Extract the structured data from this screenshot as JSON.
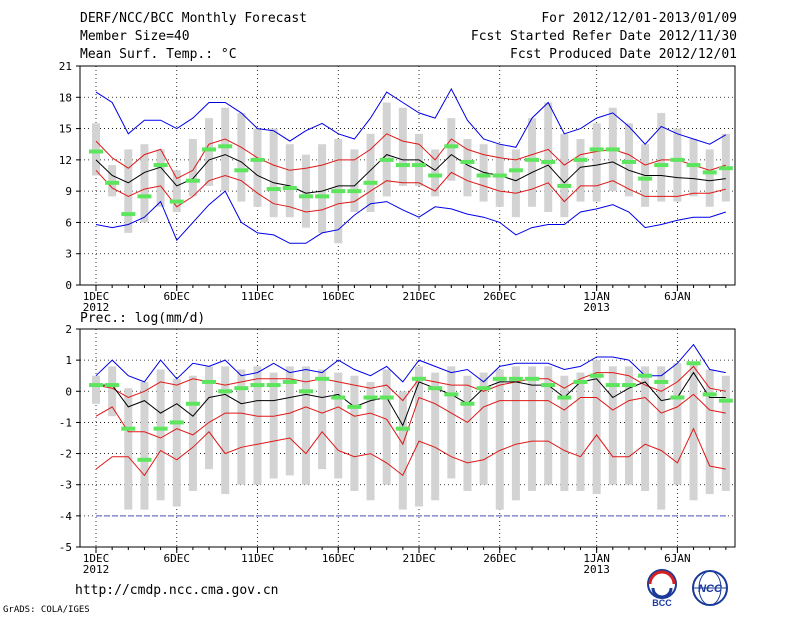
{
  "header": {
    "left": [
      "DERF/NCC/BCC Monthly Forecast",
      "Member Size=40",
      "Mean Surf. Temp.: °C"
    ],
    "right": [
      "For 2012/12/01-2013/01/09",
      "Fcst Started Refer Date 2012/11/30",
      "Fcst Produced Date 2012/12/01"
    ]
  },
  "footer": {
    "url": "http://cmdp.ncc.cma.gov.cn",
    "credit": "GrADS: COLA/IGES",
    "logo_bcc": "BCC",
    "logo_ncc": "NCC"
  },
  "colors": {
    "box": "#d3d3d3",
    "mean": "#000000",
    "spread": "#e01818",
    "extreme": "#0000e8",
    "observed": "#5ee55e",
    "floor": "#5050c8",
    "grid": "#000000"
  },
  "chart_data": [
    {
      "type": "line",
      "title": "Mean Surf. Temp.: °C",
      "ylabel": "",
      "ylim": [
        0,
        21
      ],
      "yticks": [
        0,
        3,
        6,
        9,
        12,
        15,
        18,
        21
      ],
      "categories": [
        "1DEC",
        "6DEC",
        "11DEC",
        "16DEC",
        "21DEC",
        "26DEC",
        "1JAN",
        "6JAN"
      ],
      "xtick_days": [
        1,
        6,
        11,
        16,
        21,
        26,
        32,
        37
      ],
      "xtick_years": {
        "1": "2012",
        "32": "2013"
      },
      "x": [
        1,
        2,
        3,
        4,
        5,
        6,
        7,
        8,
        9,
        10,
        11,
        12,
        13,
        14,
        15,
        16,
        17,
        18,
        19,
        20,
        21,
        22,
        23,
        24,
        25,
        26,
        27,
        28,
        29,
        30,
        31,
        32,
        33,
        34,
        35,
        36,
        37,
        38,
        39,
        40
      ],
      "box_low": [
        10.5,
        8.5,
        5.0,
        6.0,
        7.5,
        7.0,
        8.5,
        9.5,
        9.0,
        8.0,
        7.5,
        6.5,
        6.5,
        5.5,
        5.0,
        4.0,
        7.0,
        7.0,
        8.5,
        9.5,
        9.5,
        8.5,
        10.0,
        8.5,
        8.0,
        7.5,
        6.5,
        7.5,
        7.0,
        6.5,
        8.0,
        8.0,
        9.0,
        8.5,
        7.5,
        8.0,
        8.0,
        8.5,
        7.5,
        8.0
      ],
      "box_high": [
        15.5,
        11.5,
        13.0,
        13.5,
        13.0,
        11.0,
        14.0,
        16.0,
        17.0,
        16.5,
        15.0,
        15.0,
        13.5,
        12.5,
        13.5,
        14.0,
        13.0,
        14.5,
        17.5,
        17.0,
        14.5,
        13.0,
        16.0,
        14.0,
        13.5,
        13.5,
        13.0,
        16.0,
        17.5,
        14.5,
        14.0,
        15.5,
        17.0,
        15.5,
        13.5,
        16.5,
        15.0,
        14.0,
        13.0,
        14.5
      ],
      "series": [
        {
          "name": "max",
          "color_key": "extreme",
          "values": [
            18.5,
            17.5,
            14.5,
            15.8,
            15.8,
            15.0,
            16.0,
            17.5,
            17.5,
            16.5,
            15.0,
            14.8,
            13.8,
            14.8,
            15.5,
            14.5,
            14.0,
            16.0,
            18.5,
            17.5,
            16.5,
            16.0,
            18.8,
            15.8,
            14.0,
            13.5,
            13.2,
            16.0,
            17.5,
            14.5,
            15.0,
            16.0,
            16.5,
            15.2,
            13.5,
            15.2,
            14.5,
            14.0,
            13.5,
            14.4
          ]
        },
        {
          "name": "upper",
          "color_key": "spread",
          "values": [
            13.8,
            12.2,
            11.2,
            12.5,
            13.0,
            10.2,
            11.0,
            13.5,
            14.0,
            13.2,
            12.2,
            11.5,
            11.0,
            11.2,
            11.5,
            12.0,
            12.0,
            13.0,
            14.5,
            13.8,
            13.5,
            12.0,
            14.0,
            13.0,
            12.5,
            12.2,
            12.0,
            12.5,
            13.0,
            11.5,
            12.5,
            12.8,
            13.0,
            12.5,
            11.5,
            12.0,
            12.0,
            11.5,
            11.0,
            11.5
          ]
        },
        {
          "name": "mean",
          "color_key": "mean",
          "values": [
            12.0,
            10.5,
            9.8,
            10.8,
            11.3,
            9.5,
            10.2,
            12.0,
            12.5,
            11.8,
            10.5,
            9.8,
            9.5,
            8.8,
            9.0,
            9.5,
            9.5,
            11.0,
            12.5,
            12.0,
            12.0,
            11.0,
            12.5,
            11.5,
            10.8,
            10.5,
            10.0,
            10.8,
            11.5,
            9.8,
            11.3,
            11.5,
            11.8,
            11.0,
            10.5,
            10.5,
            10.3,
            10.2,
            10.0,
            10.2
          ]
        },
        {
          "name": "lower",
          "color_key": "spread",
          "values": [
            11.0,
            9.3,
            8.5,
            9.2,
            9.5,
            7.5,
            8.5,
            10.0,
            10.5,
            10.0,
            8.8,
            7.8,
            7.5,
            7.0,
            7.2,
            7.8,
            8.0,
            9.0,
            10.0,
            9.8,
            9.8,
            9.0,
            10.8,
            10.0,
            9.5,
            9.0,
            8.8,
            9.2,
            9.8,
            8.0,
            9.5,
            9.5,
            10.0,
            9.2,
            8.5,
            8.5,
            8.5,
            8.8,
            8.8,
            9.2
          ]
        },
        {
          "name": "min",
          "color_key": "extreme",
          "values": [
            5.8,
            5.5,
            5.8,
            6.5,
            8.0,
            4.3,
            6.0,
            7.7,
            9.0,
            6.0,
            5.0,
            4.8,
            4.0,
            4.0,
            5.0,
            5.3,
            6.7,
            7.8,
            8.0,
            7.2,
            6.5,
            7.5,
            7.3,
            6.8,
            6.5,
            6.0,
            4.8,
            5.5,
            5.8,
            5.8,
            7.0,
            7.3,
            7.7,
            7.0,
            5.5,
            5.8,
            6.2,
            6.5,
            6.5,
            7.0
          ]
        }
      ],
      "observed": [
        12.8,
        9.8,
        6.8,
        8.5,
        11.5,
        8.0,
        10.0,
        13.0,
        13.3,
        11.0,
        12.0,
        9.2,
        9.3,
        8.5,
        8.5,
        9.0,
        9.0,
        9.8,
        12.0,
        11.5,
        11.5,
        10.5,
        13.3,
        11.8,
        10.5,
        10.5,
        11.0,
        12.0,
        11.8,
        9.5,
        12.0,
        13.0,
        13.0,
        11.8,
        10.2,
        11.5,
        12.0,
        11.5,
        10.8,
        11.2
      ],
      "floor": null
    },
    {
      "type": "line",
      "title": "Prec.: log(mm/d)",
      "ylabel": "",
      "ylim": [
        -5,
        2
      ],
      "yticks": [
        -5,
        -4,
        -3,
        -2,
        -1,
        0,
        1,
        2
      ],
      "categories": [
        "1DEC",
        "6DEC",
        "11DEC",
        "16DEC",
        "21DEC",
        "26DEC",
        "1JAN",
        "6JAN"
      ],
      "xtick_days": [
        1,
        6,
        11,
        16,
        21,
        26,
        32,
        37
      ],
      "xtick_years": {
        "1": "2012",
        "32": "2013"
      },
      "x": [
        1,
        2,
        3,
        4,
        5,
        6,
        7,
        8,
        9,
        10,
        11,
        12,
        13,
        14,
        15,
        16,
        17,
        18,
        19,
        20,
        21,
        22,
        23,
        24,
        25,
        26,
        27,
        28,
        29,
        30,
        31,
        32,
        33,
        34,
        35,
        36,
        37,
        38,
        39,
        40
      ],
      "box_low": [
        -0.4,
        -0.8,
        -3.8,
        -3.8,
        -3.5,
        -3.7,
        -3.2,
        -2.5,
        -3.3,
        -3.0,
        -3.0,
        -2.8,
        -2.7,
        -3.0,
        -2.5,
        -2.8,
        -3.2,
        -3.5,
        -3.0,
        -3.8,
        -3.7,
        -3.5,
        -2.8,
        -3.2,
        -3.0,
        -3.8,
        -3.5,
        -3.2,
        -3.0,
        -3.2,
        -3.2,
        -3.3,
        -3.0,
        -3.0,
        -3.2,
        -3.8,
        -3.0,
        -3.5,
        -3.3,
        -3.2
      ],
      "box_high": [
        0.5,
        0.8,
        0.1,
        0.3,
        0.7,
        0.4,
        0.5,
        0.8,
        0.8,
        0.7,
        0.8,
        0.6,
        0.8,
        0.8,
        0.7,
        0.6,
        0.5,
        0.3,
        0.7,
        0.0,
        0.8,
        0.6,
        0.8,
        0.5,
        0.6,
        0.7,
        0.8,
        0.8,
        0.8,
        0.5,
        0.6,
        1.0,
        0.8,
        0.8,
        0.8,
        0.8,
        0.9,
        0.9,
        0.7,
        0.5
      ],
      "series": [
        {
          "name": "max",
          "color_key": "extreme",
          "values": [
            0.5,
            1.0,
            0.5,
            0.3,
            1.0,
            0.4,
            0.9,
            0.8,
            1.0,
            0.5,
            0.6,
            0.9,
            0.6,
            0.7,
            0.6,
            1.0,
            0.7,
            0.5,
            0.8,
            0.3,
            1.0,
            0.8,
            0.6,
            0.7,
            0.3,
            0.8,
            0.9,
            0.9,
            0.9,
            0.7,
            0.8,
            1.1,
            1.1,
            1.0,
            0.5,
            0.5,
            0.9,
            1.5,
            0.7,
            0.6
          ]
        },
        {
          "name": "upper",
          "color_key": "spread",
          "values": [
            0.2,
            0.1,
            -0.2,
            0.0,
            0.3,
            0.2,
            0.4,
            0.3,
            0.2,
            0.3,
            0.4,
            0.4,
            0.4,
            0.3,
            0.4,
            0.3,
            0.2,
            0.1,
            0.2,
            -0.3,
            0.4,
            0.3,
            0.2,
            0.2,
            0.0,
            0.2,
            0.3,
            0.4,
            0.4,
            0.1,
            0.4,
            0.6,
            0.6,
            0.5,
            0.2,
            0.0,
            0.3,
            0.8,
            0.1,
            0.0
          ]
        },
        {
          "name": "mean",
          "color_key": "mean",
          "values": [
            0.2,
            0.2,
            -0.5,
            -0.3,
            -0.7,
            -0.4,
            -0.8,
            -0.2,
            -0.1,
            -0.4,
            -0.3,
            -0.3,
            -0.2,
            -0.1,
            -0.2,
            -0.1,
            -0.5,
            -0.3,
            -0.2,
            -1.1,
            0.3,
            0.1,
            -0.1,
            -0.4,
            0.1,
            0.3,
            0.3,
            0.2,
            0.2,
            -0.2,
            0.3,
            0.4,
            -0.2,
            0.1,
            0.3,
            -0.3,
            -0.2,
            0.6,
            -0.2,
            -0.2
          ]
        },
        {
          "name": "lower",
          "color_key": "spread",
          "values": [
            -0.8,
            -0.5,
            -1.3,
            -1.3,
            -1.5,
            -1.2,
            -1.4,
            -1.0,
            -0.7,
            -0.7,
            -0.8,
            -0.8,
            -0.7,
            -0.5,
            -0.7,
            -0.5,
            -0.8,
            -0.7,
            -0.9,
            -1.7,
            -0.2,
            -0.4,
            -0.7,
            -1.0,
            -0.5,
            -0.3,
            -0.3,
            -0.3,
            -0.3,
            -0.6,
            -0.2,
            -0.2,
            -0.6,
            -0.3,
            -0.2,
            -0.7,
            -0.5,
            -0.1,
            -0.6,
            -0.7
          ]
        },
        {
          "name": "min",
          "color_key": "spread",
          "values": [
            -2.5,
            -2.1,
            -2.1,
            -2.7,
            -1.9,
            -2.2,
            -1.8,
            -1.3,
            -2.0,
            -1.8,
            -1.7,
            -1.6,
            -1.5,
            -2.0,
            -1.3,
            -1.9,
            -2.1,
            -2.0,
            -2.3,
            -2.7,
            -1.6,
            -1.8,
            -2.1,
            -2.3,
            -2.2,
            -1.9,
            -1.7,
            -1.6,
            -1.6,
            -1.9,
            -2.1,
            -1.4,
            -2.1,
            -2.1,
            -1.7,
            -1.9,
            -2.3,
            -1.2,
            -2.4,
            -2.5
          ]
        }
      ],
      "observed": [
        0.2,
        0.2,
        -1.2,
        -2.2,
        -1.2,
        -1.0,
        -0.4,
        0.3,
        0.0,
        0.1,
        0.2,
        0.2,
        0.3,
        0.0,
        0.4,
        -0.2,
        -0.5,
        -0.2,
        -0.2,
        -1.2,
        0.4,
        0.1,
        -0.1,
        -0.4,
        0.1,
        0.4,
        0.4,
        0.4,
        0.2,
        -0.2,
        0.3,
        0.5,
        0.2,
        0.2,
        0.5,
        0.3,
        -0.2,
        0.9,
        -0.1,
        -0.3
      ],
      "floor": -4
    }
  ]
}
